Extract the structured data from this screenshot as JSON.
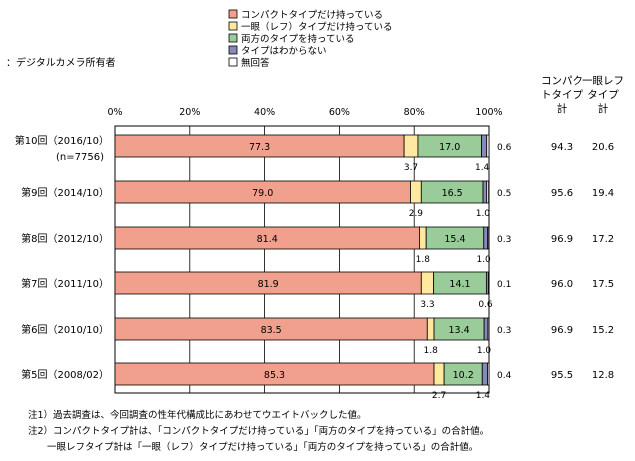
{
  "subtitle": "：デジタルカメラ所有者",
  "legend": [
    {
      "label": "コンパクトタイプだけ持っている",
      "color": "#F0A08C"
    },
    {
      "label": "一眼（レフ）タイプだけ持っている",
      "color": "#FFE9A0"
    },
    {
      "label": "両方のタイプを持っている",
      "color": "#99CC99"
    },
    {
      "label": "タイプはわからない",
      "color": "#8888BB"
    },
    {
      "label": "無回答",
      "color": "#FFFFFF"
    }
  ],
  "col_headers": {
    "compact": [
      "コンパク",
      "トタイプ",
      "計"
    ],
    "slr": [
      "一眼レフ",
      "タイプ",
      "計"
    ]
  },
  "notes": [
    "注1）過去調査は、今回調査の性年代構成比にあわせてウエイトバックした値。",
    "注2）コンパクトタイプ計は、「コンパクトタイプだけ持っている」「両方のタイプを持っている」の合計値。",
    "　　一眼レフタイプ計は「一眼（レフ）タイプだけ持っている」「両方のタイプを持っている」の合計値。"
  ],
  "chart_data": {
    "type": "bar",
    "orientation": "horizontal",
    "stacked": true,
    "x_ticks": [
      "0%",
      "20%",
      "40%",
      "60%",
      "80%",
      "100%"
    ],
    "xlim": [
      0,
      100
    ],
    "grid": true,
    "legend_position": "top",
    "categories": [
      {
        "label": "第10回（2016/10）",
        "sublabel": "(n=7756)"
      },
      {
        "label": "第9回（2014/10）",
        "sublabel": ""
      },
      {
        "label": "第8回（2012/10）",
        "sublabel": ""
      },
      {
        "label": "第7回（2011/10）",
        "sublabel": ""
      },
      {
        "label": "第6回（2010/10）",
        "sublabel": ""
      },
      {
        "label": "第5回（2008/02）",
        "sublabel": ""
      }
    ],
    "series": [
      {
        "name": "コンパクトタイプだけ持っている",
        "values": [
          77.3,
          79.0,
          81.4,
          81.9,
          83.5,
          85.3
        ]
      },
      {
        "name": "一眼（レフ）タイプだけ持っている",
        "values": [
          3.7,
          2.9,
          1.8,
          3.3,
          1.8,
          2.7
        ]
      },
      {
        "name": "両方のタイプを持っている",
        "values": [
          17.0,
          16.5,
          15.4,
          14.1,
          13.4,
          10.2
        ]
      },
      {
        "name": "タイプはわからない",
        "values": [
          1.4,
          1.0,
          1.0,
          0.6,
          1.0,
          1.4
        ]
      },
      {
        "name": "無回答",
        "values": [
          0.6,
          0.5,
          0.3,
          0.1,
          0.3,
          0.4
        ]
      }
    ],
    "compact_total": [
      94.3,
      95.6,
      96.9,
      96.0,
      96.9,
      95.5
    ],
    "slr_total": [
      20.6,
      19.4,
      17.2,
      17.5,
      15.2,
      12.8
    ],
    "value_labels": {
      "inside": [
        [
          "77.3",
          "17.0"
        ],
        [
          "79.0",
          "16.5"
        ],
        [
          "81.4",
          "15.4"
        ],
        [
          "81.9",
          "14.1"
        ],
        [
          "83.5",
          "13.4"
        ],
        [
          "85.3",
          "10.2"
        ]
      ],
      "below": [
        [
          "3.7",
          "1.4"
        ],
        [
          "2.9",
          "1.0"
        ],
        [
          "1.8",
          "1.0"
        ],
        [
          "3.3",
          "0.6"
        ],
        [
          "1.8",
          "1.0"
        ],
        [
          "2.7",
          "1.4"
        ]
      ],
      "right": [
        "0.6",
        "0.5",
        "0.3",
        "0.1",
        "0.3",
        "0.4"
      ]
    }
  }
}
